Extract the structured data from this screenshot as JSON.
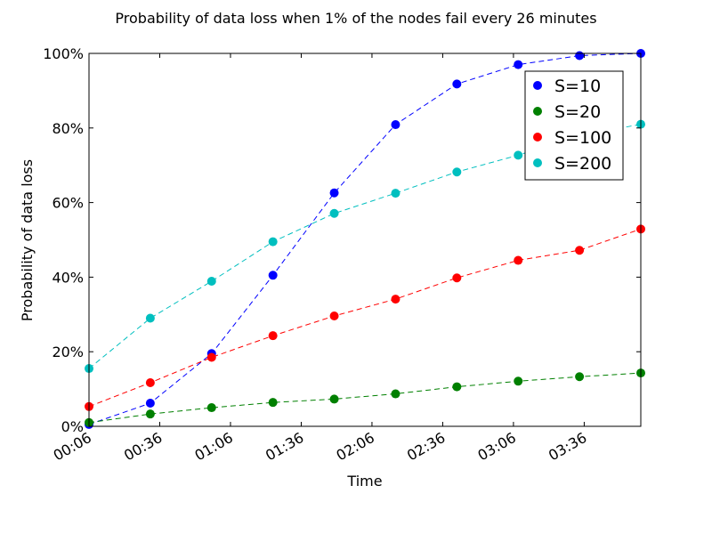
{
  "chart_data": {
    "type": "line",
    "title": "Probability of data loss when 1% of the nodes fail every 26 minutes",
    "xlabel": "Time",
    "ylabel": "Probability of data loss",
    "x_minutes": [
      6,
      32,
      58,
      84,
      110,
      136,
      162,
      188,
      214,
      240
    ],
    "x_ticks": [
      {
        "value": 6,
        "label": "00:06"
      },
      {
        "value": 36,
        "label": "00:36"
      },
      {
        "value": 66,
        "label": "01:06"
      },
      {
        "value": 96,
        "label": "01:36"
      },
      {
        "value": 126,
        "label": "02:06"
      },
      {
        "value": 156,
        "label": "02:36"
      },
      {
        "value": 186,
        "label": "03:06"
      },
      {
        "value": 216,
        "label": "03:36"
      }
    ],
    "xlim": [
      6,
      240
    ],
    "y_ticks": [
      {
        "value": 0,
        "label": "0%"
      },
      {
        "value": 20,
        "label": "20%"
      },
      {
        "value": 40,
        "label": "40%"
      },
      {
        "value": 60,
        "label": "60%"
      },
      {
        "value": 80,
        "label": "80%"
      },
      {
        "value": 100,
        "label": "100%"
      }
    ],
    "ylim": [
      0,
      100
    ],
    "grid": false,
    "legend_position": "top-right",
    "series": [
      {
        "name": "S=10",
        "color": "#0000ff",
        "values": [
          0.5,
          6.2,
          19.5,
          40.5,
          62.6,
          80.9,
          91.8,
          97.0,
          99.4,
          100.0
        ]
      },
      {
        "name": "S=20",
        "color": "#008000",
        "values": [
          1.0,
          3.3,
          5.0,
          6.4,
          7.3,
          8.7,
          10.6,
          12.1,
          13.3,
          14.3
        ]
      },
      {
        "name": "S=100",
        "color": "#ff0000",
        "values": [
          5.3,
          11.7,
          18.5,
          24.3,
          29.6,
          34.1,
          39.8,
          44.5,
          47.2,
          52.9
        ]
      },
      {
        "name": "S=200",
        "color": "#00bfbf",
        "values": [
          15.5,
          29.0,
          38.9,
          49.5,
          57.1,
          62.5,
          68.2,
          72.7,
          77.9,
          81.0
        ]
      }
    ]
  }
}
